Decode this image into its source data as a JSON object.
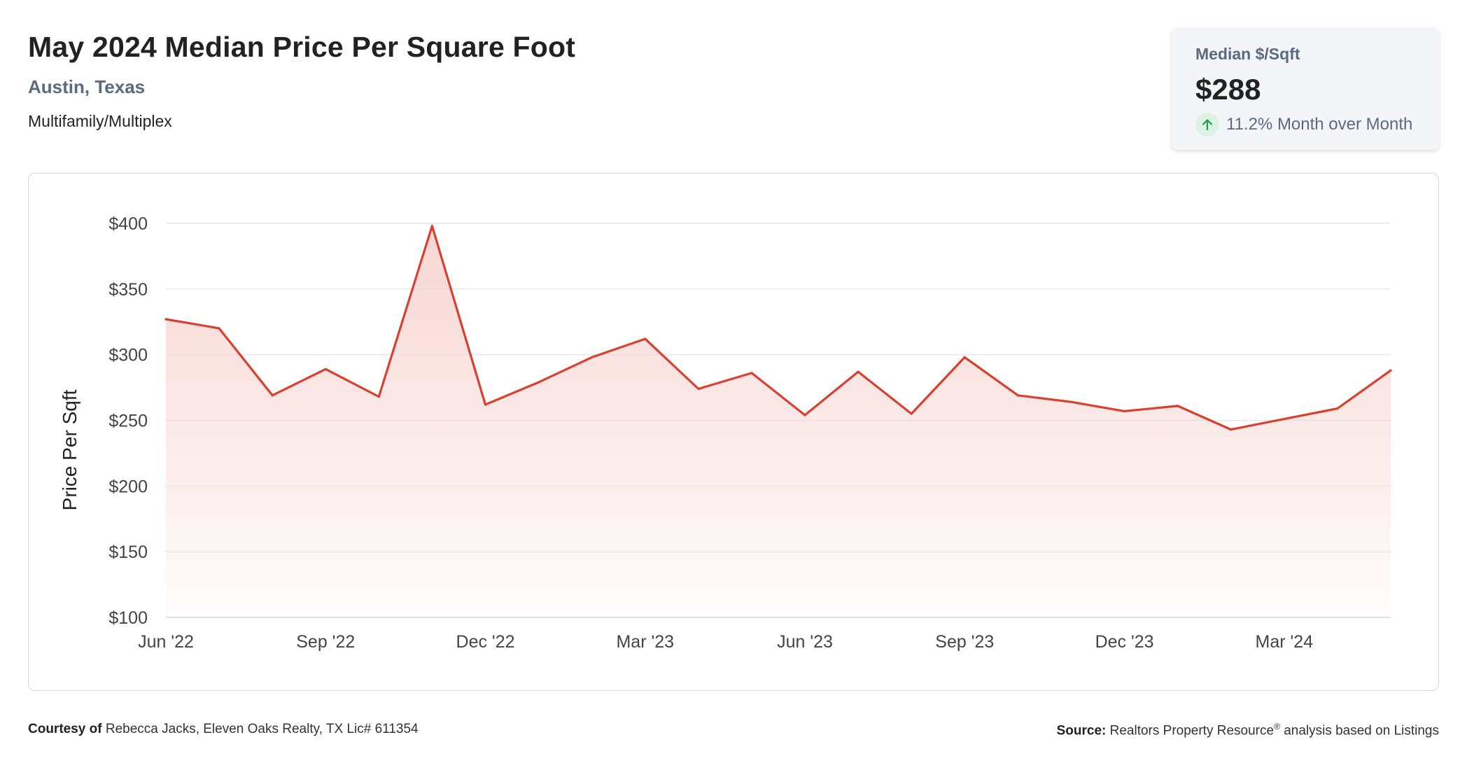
{
  "header": {
    "title": "May 2024 Median Price Per Square Foot",
    "location": "Austin, Texas",
    "property_type": "Multifamily/Multiplex"
  },
  "stat_card": {
    "label": "Median $/Sqft",
    "value": "$288",
    "change_text": "11.2% Month over Month",
    "change_direction": "up",
    "icon": "arrow-up-icon"
  },
  "footer": {
    "courtesy_label": "Courtesy of",
    "courtesy_text": "Rebecca Jacks, Eleven Oaks Realty, TX Lic# 611354",
    "source_label": "Source:",
    "source_text": "Realtors Property Resource",
    "source_mark": "®",
    "source_suffix": "analysis based on Listings"
  },
  "colors": {
    "line": "#d9402f",
    "fill_top": "#f6cfcb",
    "grid": "#e3e3e3",
    "axis_text": "#444444",
    "accent_text": "#5b6a7e",
    "up_green": "#1f9d55"
  },
  "chart_data": {
    "type": "area",
    "title": "",
    "xlabel": "",
    "ylabel": "Price Per Sqft",
    "x": [
      "Jun '22",
      "Jul '22",
      "Aug '22",
      "Sep '22",
      "Oct '22",
      "Nov '22",
      "Dec '22",
      "Jan '23",
      "Feb '23",
      "Mar '23",
      "Apr '23",
      "May '23",
      "Jun '23",
      "Jul '23",
      "Aug '23",
      "Sep '23",
      "Oct '23",
      "Nov '23",
      "Dec '23",
      "Jan '24",
      "Feb '24",
      "Mar '24",
      "Apr '24",
      "May '24"
    ],
    "series": [
      {
        "values": [
          327,
          320,
          269,
          289,
          268,
          398,
          262,
          279,
          298,
          312,
          274,
          286,
          254,
          287,
          255,
          298,
          269,
          264,
          257,
          261,
          243,
          251,
          259,
          288
        ]
      }
    ],
    "x_tick_labels": [
      "Jun '22",
      "Sep '22",
      "Dec '22",
      "Mar '23",
      "Jun '23",
      "Sep '23",
      "Dec '23",
      "Mar '24"
    ],
    "x_tick_indices": [
      0,
      3,
      6,
      9,
      12,
      15,
      18,
      21
    ],
    "y_ticks": [
      "$100",
      "$150",
      "$200",
      "$250",
      "$300",
      "$350",
      "$400"
    ],
    "y_tick_values": [
      100,
      150,
      200,
      250,
      300,
      350,
      400
    ],
    "ylim": [
      100,
      400
    ],
    "grid": true,
    "legend": "none"
  }
}
